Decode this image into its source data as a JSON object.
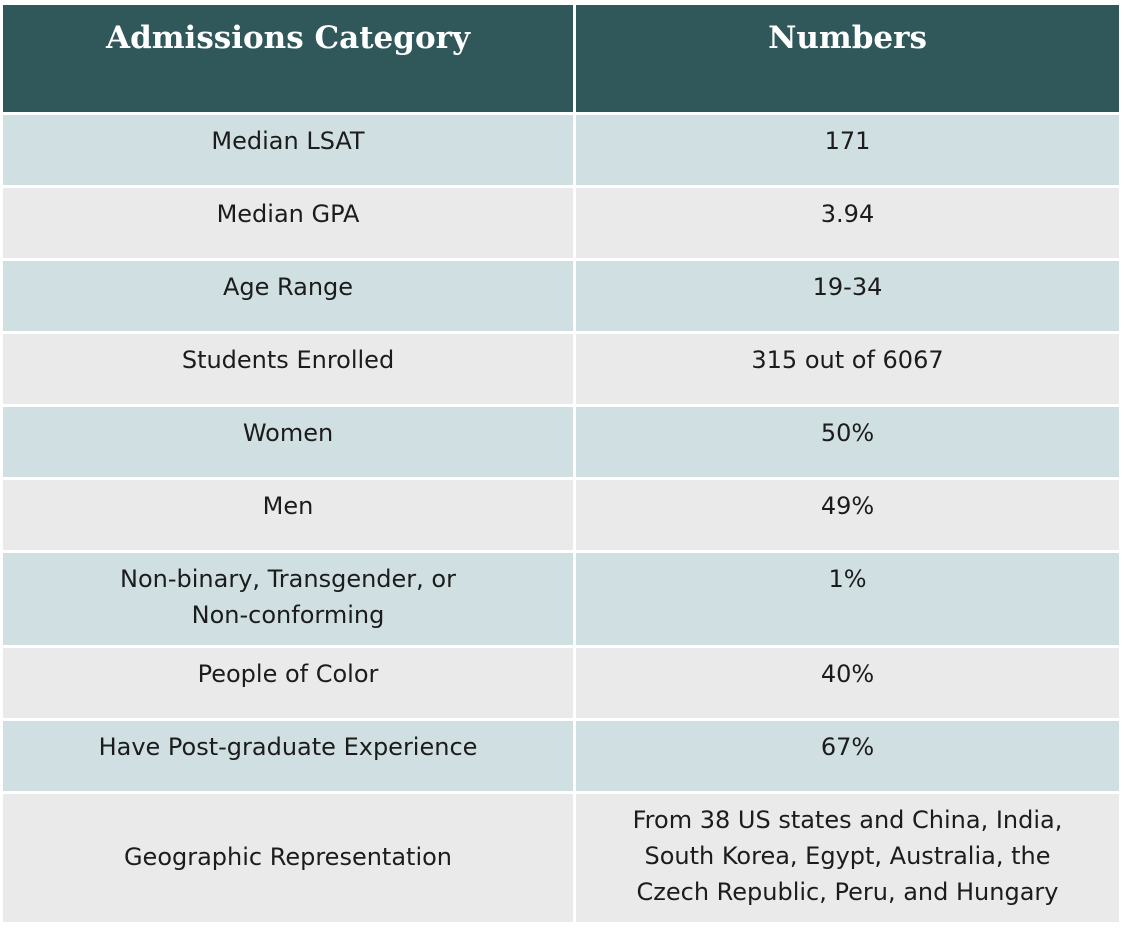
{
  "table": {
    "headers": [
      "Admissions Category",
      "Numbers"
    ],
    "rows": [
      {
        "category": "Median LSAT",
        "number": "171"
      },
      {
        "category": "Median GPA",
        "number": "3.94"
      },
      {
        "category": "Age Range",
        "number": "19-34"
      },
      {
        "category": "Students Enrolled",
        "number": "315 out of 6067"
      },
      {
        "category": "Women",
        "number": "50%"
      },
      {
        "category": "Men",
        "number": "49%"
      },
      {
        "category_lines": [
          "Non-binary, Transgender, or",
          "Non-conforming"
        ],
        "number": "1%"
      },
      {
        "category": "People of Color",
        "number": "40%"
      },
      {
        "category": "Have Post-graduate Experience",
        "number": "67%"
      },
      {
        "category": "Geographic Representation",
        "number_lines": [
          "From 38 US states and China, India,",
          "South Korea, Egypt, Australia, the",
          "Czech Republic, Peru, and Hungary"
        ]
      }
    ]
  },
  "colors": {
    "header_bg": "#30585a",
    "row_alt_a": "#d0dfe2",
    "row_alt_b": "#eaeaea"
  }
}
